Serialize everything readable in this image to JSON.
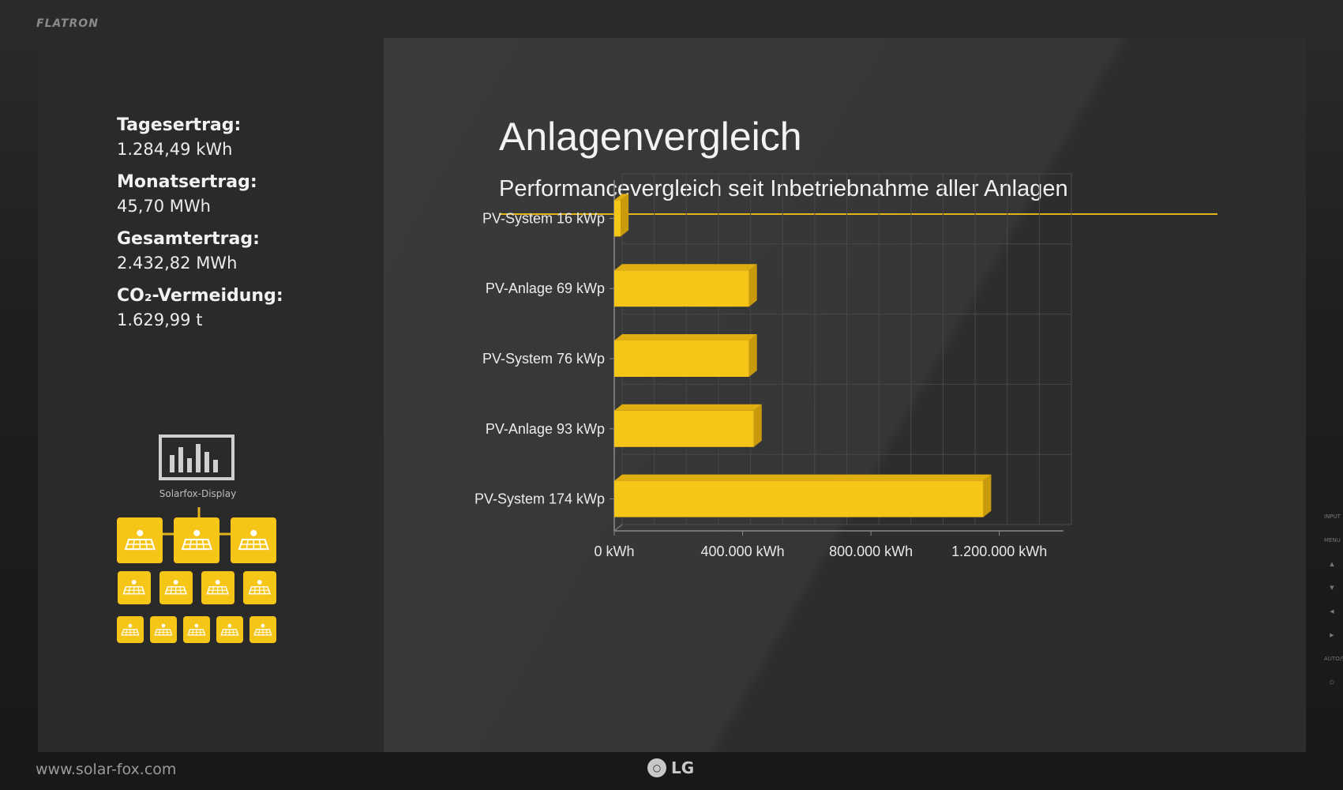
{
  "monitor": {
    "brand": "FLATRON",
    "logo": "LG",
    "website": "www.solar-fox.com"
  },
  "sidebar": {
    "stats": [
      {
        "label": "Tagesertrag:",
        "value": "1.284,49 kWh"
      },
      {
        "label": "Monatsertrag:",
        "value": "45,70 MWh"
      },
      {
        "label": "Gesamtertrag:",
        "value": "2.432,82 MWh"
      },
      {
        "label": "CO₂-Vermeidung:",
        "value": "1.629,99 t"
      }
    ],
    "display_label": "Solarfox-Display",
    "icons": {
      "display": "bar-chart-display-icon",
      "panel": "solar-panel-icon"
    }
  },
  "main": {
    "title": "Anlagenvergleich",
    "subtitle": "Performancevergleich seit Inbetriebnahme aller Anlagen"
  },
  "colors": {
    "accent": "#f5c518",
    "bar_side": "#c99a0c",
    "bar_top": "#e0ae10"
  },
  "chart_data": {
    "type": "bar",
    "orientation": "horizontal",
    "categories": [
      "PV-System 16 kWp",
      "PV-Anlage 69 kWp",
      "PV-System 76 kWp",
      "PV-Anlage 93 kWp",
      "PV-System 174 kWp"
    ],
    "values": [
      20000,
      420000,
      420000,
      435000,
      1150000
    ],
    "xlim": [
      0,
      1400000
    ],
    "ticks": [
      0,
      400000,
      800000,
      1200000
    ],
    "tick_labels": [
      "0 kWh",
      "400.000 kWh",
      "800.000 kWh",
      "1.200.000 kWh"
    ],
    "grid": true
  },
  "side_controls": [
    "INPUT",
    "MENU",
    "▲",
    "▼",
    "◀",
    "▶",
    "AUTO/SET",
    "⏻"
  ]
}
